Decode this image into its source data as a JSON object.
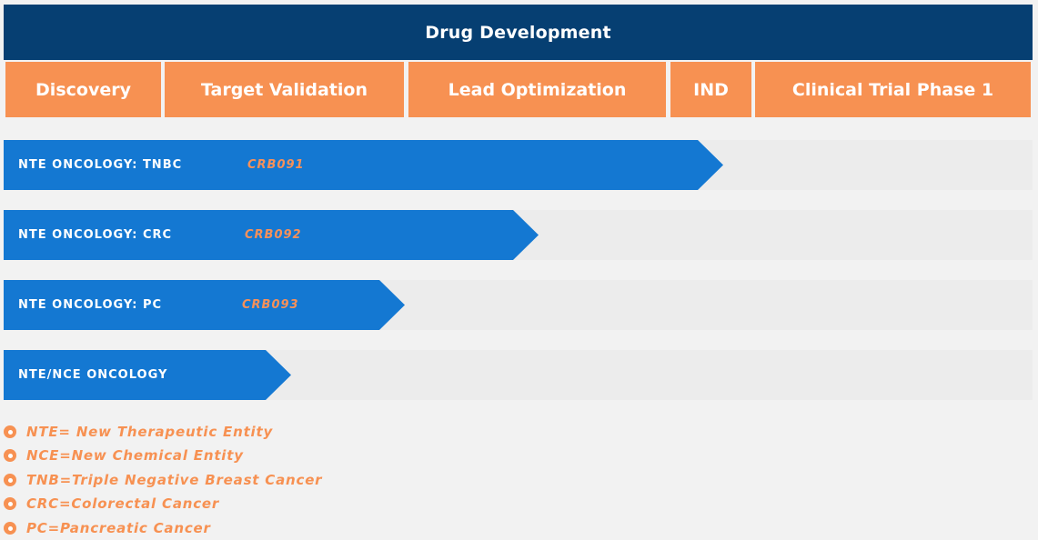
{
  "header": {
    "title": "Drug Development"
  },
  "phases": [
    "Discovery",
    "Target Validation",
    "Lead Optimization",
    "IND",
    "Clinical Trial Phase 1"
  ],
  "pipeline": [
    {
      "label": "NTE  ONCOLOGY:  TNBC",
      "code": "CRB091"
    },
    {
      "label": "NTE  ONCOLOGY:  CRC",
      "code": "CRB092"
    },
    {
      "label": "NTE  ONCOLOGY:  PC",
      "code": "CRB093"
    },
    {
      "label": "NTE/NCE  ONCOLOGY",
      "code": ""
    }
  ],
  "legend": [
    "NTE= New Therapeutic Entity",
    "NCE=New Chemical Entity",
    "TNB=Triple Negative Breast Cancer",
    "CRC=Colorectal Cancer",
    "PC=Pancreatic Cancer"
  ],
  "colors": {
    "header": "#063f72",
    "phase": "#f79152",
    "bar": "#1478d2",
    "track": "#ececec",
    "accent": "#f7915a"
  }
}
